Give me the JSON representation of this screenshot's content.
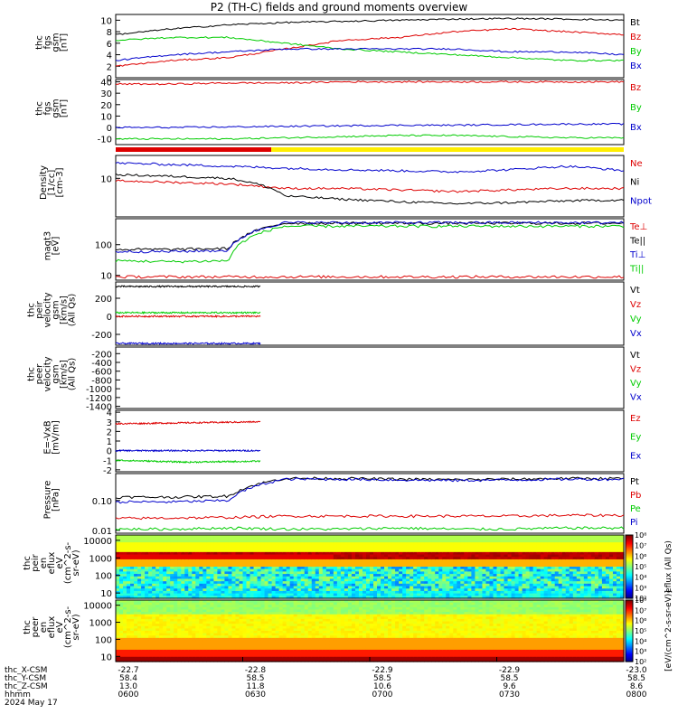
{
  "title": "P2 (TH-C) fields and ground moments overview",
  "colors": {
    "black": "#000000",
    "red": "#dd0000",
    "green": "#00cc00",
    "blue": "#0000cc",
    "yellow": "#ffee00"
  },
  "chart_data": [
    {
      "type": "line",
      "panel": "fgs_gsm_magnitude",
      "ylabel": [
        "thc",
        "fgs",
        "gsm",
        "[nT]"
      ],
      "yticks": [
        "0",
        "2",
        "4",
        "6",
        "8",
        "10"
      ],
      "ylim": [
        0,
        11
      ],
      "series": [
        {
          "name": "Bt",
          "color": "black",
          "values": [
            7.5,
            8.5,
            9.2,
            9.6,
            9.8,
            10.0,
            10.2,
            10.3,
            10.2,
            10.0
          ]
        },
        {
          "name": "Bz",
          "color": "red",
          "values": [
            2.0,
            3.0,
            3.5,
            5.0,
            6.5,
            7.0,
            8.0,
            8.5,
            8.0,
            7.5
          ]
        },
        {
          "name": "By",
          "color": "green",
          "values": [
            6.5,
            7.0,
            7.0,
            6.0,
            5.0,
            4.5,
            4.0,
            3.5,
            3.0,
            3.0
          ]
        },
        {
          "name": "Bx",
          "color": "blue",
          "values": [
            3.0,
            4.0,
            4.5,
            5.0,
            5.0,
            5.0,
            5.0,
            4.5,
            4.5,
            4.0
          ]
        }
      ]
    },
    {
      "type": "line",
      "panel": "fgs_gsm_components",
      "ylabel": [
        "thc",
        "fgs",
        "gsm",
        "[nT]"
      ],
      "yticks": [
        "-10",
        "0",
        "10",
        "20",
        "30",
        "40"
      ],
      "ylim": [
        -15,
        42
      ],
      "series": [
        {
          "name": "Bz",
          "color": "red",
          "values": [
            38,
            38,
            39,
            39,
            40,
            40,
            40,
            40,
            40,
            40
          ]
        },
        {
          "name": "By",
          "color": "green",
          "values": [
            -10,
            -10,
            -10,
            -9,
            -8,
            -7,
            -7,
            -8,
            -9,
            -9
          ]
        },
        {
          "name": "Bx",
          "color": "blue",
          "values": [
            0,
            0,
            0.5,
            1,
            1.5,
            2,
            2,
            2.5,
            3,
            3
          ]
        }
      ]
    },
    {
      "type": "line",
      "panel": "density",
      "ylabel": [
        "Density",
        "[1/cc]",
        "[cm-3]"
      ],
      "yticks": [
        "10"
      ],
      "ylim": [
        0.3,
        80
      ],
      "log": true,
      "series": [
        {
          "name": "Ne",
          "color": "red",
          "values": [
            8,
            7,
            6,
            4,
            4,
            3.5,
            3,
            3.5,
            4,
            4
          ]
        },
        {
          "name": "Ni",
          "color": "black",
          "values": [
            14,
            12,
            10,
            2,
            1.5,
            1.2,
            1,
            1.1,
            1.3,
            1.4
          ]
        },
        {
          "name": "Npot",
          "color": "blue",
          "values": [
            40,
            35,
            30,
            25,
            22,
            20,
            18,
            22,
            30,
            20
          ]
        }
      ]
    },
    {
      "type": "line",
      "panel": "temperature",
      "ylabel": [
        "magt3",
        "[eV]"
      ],
      "yticks": [
        "10",
        "100"
      ],
      "ylim": [
        7,
        700
      ],
      "log": true,
      "series": [
        {
          "name": "Te⊥",
          "color": "red",
          "values": [
            9,
            9,
            9,
            9,
            9,
            9,
            9,
            9,
            9,
            9
          ]
        },
        {
          "name": "Te||",
          "color": "black",
          "values": [
            70,
            70,
            75,
            500,
            500,
            500,
            500,
            500,
            500,
            500
          ]
        },
        {
          "name": "Ti⊥",
          "color": "blue",
          "values": [
            60,
            60,
            65,
            520,
            520,
            520,
            520,
            520,
            520,
            520
          ]
        },
        {
          "name": "Ti||",
          "color": "green",
          "values": [
            30,
            28,
            30,
            400,
            400,
            400,
            400,
            400,
            400,
            400
          ]
        }
      ]
    },
    {
      "type": "line",
      "panel": "peir_velocity",
      "ylabel": [
        "thc",
        "peir",
        "velocity",
        "gsm",
        "[km/s]",
        "(All Qs)"
      ],
      "yticks": [
        "-200",
        "0",
        "200"
      ],
      "ylim": [
        -320,
        380
      ],
      "series": [
        {
          "name": "Vt",
          "color": "black",
          "values": [
            330,
            330,
            330
          ]
        },
        {
          "name": "Vz",
          "color": "red",
          "values": [
            0,
            0,
            0
          ]
        },
        {
          "name": "Vy",
          "color": "green",
          "values": [
            40,
            40,
            40
          ]
        },
        {
          "name": "Vx",
          "color": "blue",
          "values": [
            -300,
            -300,
            -300
          ]
        }
      ]
    },
    {
      "type": "line",
      "panel": "peer_velocity",
      "ylabel": [
        "thc",
        "peer",
        "velocity",
        "gsm",
        "[km/s]",
        "(All Qs)"
      ],
      "yticks": [
        "-1400",
        "-1200",
        "-1000",
        "-800",
        "-600",
        "-400",
        "-200"
      ],
      "ylim": [
        -1450,
        -50
      ],
      "series": [
        {
          "name": "Vt",
          "color": "black",
          "values": []
        },
        {
          "name": "Vz",
          "color": "red",
          "values": []
        },
        {
          "name": "Vy",
          "color": "green",
          "values": []
        },
        {
          "name": "Vx",
          "color": "blue",
          "values": []
        }
      ]
    },
    {
      "type": "line",
      "panel": "e_field",
      "ylabel": [
        "E=-VxB",
        "[mV/m]"
      ],
      "yticks": [
        "-2",
        "-1",
        "0",
        "1",
        "2",
        "3",
        "4"
      ],
      "ylim": [
        -2.2,
        4.2
      ],
      "series": [
        {
          "name": "Ez",
          "color": "red",
          "values": [
            2.8,
            2.9,
            3.0
          ]
        },
        {
          "name": "Ey",
          "color": "green",
          "values": [
            -1.0,
            -1.2,
            -1.1
          ]
        },
        {
          "name": "Ex",
          "color": "blue",
          "values": [
            0.0,
            0.0,
            0.0
          ]
        }
      ]
    },
    {
      "type": "line",
      "panel": "pressure",
      "ylabel": [
        "Pressure",
        "[nPa]"
      ],
      "yticks": [
        "0.01",
        "0.10"
      ],
      "ylim": [
        0.008,
        0.8
      ],
      "log": true,
      "series": [
        {
          "name": "Pt",
          "color": "black",
          "values": [
            0.13,
            0.13,
            0.14,
            0.55,
            0.55,
            0.52,
            0.5,
            0.52,
            0.55,
            0.55
          ]
        },
        {
          "name": "Pb",
          "color": "red",
          "values": [
            0.025,
            0.026,
            0.027,
            0.03,
            0.03,
            0.03,
            0.03,
            0.03,
            0.032,
            0.032
          ]
        },
        {
          "name": "Pe",
          "color": "green",
          "values": [
            0.011,
            0.011,
            0.012,
            0.011,
            0.011,
            0.012,
            0.011,
            0.011,
            0.012,
            0.012
          ]
        },
        {
          "name": "Pi",
          "color": "blue",
          "values": [
            0.09,
            0.09,
            0.1,
            0.52,
            0.52,
            0.49,
            0.47,
            0.49,
            0.52,
            0.52
          ]
        }
      ]
    },
    {
      "type": "heatmap",
      "panel": "peir_en_eflux",
      "ylabel": [
        "thc",
        "peir",
        "en",
        "eflux",
        "eV",
        "(cm^2-s-",
        "sr-eV)"
      ],
      "yticks": [
        "10",
        "100",
        "1000",
        "10000"
      ],
      "ylim": [
        5,
        20000
      ],
      "log": true
    },
    {
      "type": "heatmap",
      "panel": "peer_en_eflux",
      "ylabel": [
        "thc",
        "peer",
        "en",
        "eflux",
        "eV",
        "(cm^2-s-",
        "sr-eV)"
      ],
      "yticks": [
        "10",
        "100",
        "1000",
        "10000"
      ],
      "ylim": [
        5,
        20000
      ],
      "log": true
    }
  ],
  "colorbar": {
    "label": "[eV/(cm^2-s-sr-eV)]",
    "label2": "eflux (All Qs)",
    "ticks": [
      "10²",
      "10³",
      "10⁴",
      "10⁵",
      "10⁶",
      "10⁷",
      "10⁸"
    ]
  },
  "colorbar2": {
    "ticks": [
      "10²",
      "10³",
      "10⁴",
      "10⁵",
      "10⁶",
      "10⁷",
      "10⁸"
    ]
  },
  "xaxis": {
    "rows": [
      {
        "label": "thc_X-CSM",
        "values": [
          "-22.7",
          "-22.8",
          "-22.9",
          "-22.9",
          "-23.0"
        ]
      },
      {
        "label": "thc_Y-CSM",
        "values": [
          "58.4",
          "58.5",
          "58.5",
          "58.5",
          "58.5"
        ]
      },
      {
        "label": "thc_Z-CSM",
        "values": [
          "13.0",
          "11.8",
          "10.6",
          "9.6",
          "8.6"
        ]
      },
      {
        "label": "hhmm",
        "values": [
          "0600",
          "0630",
          "0700",
          "0730",
          "0800"
        ]
      }
    ],
    "date": "2024 May 17"
  },
  "legend_layout": [
    [
      "Bt",
      "Bz",
      "By",
      "Bx"
    ],
    [
      "Bz",
      "By",
      "Bx"
    ],
    [
      "Ne",
      "Ni",
      "Npot"
    ],
    [
      "Te⊥",
      "Te||",
      "Ti⊥",
      "Ti||"
    ],
    [
      "Vt",
      "Vz",
      "Vy",
      "Vx"
    ],
    [
      "Vt",
      "Vz",
      "Vy",
      "Vx"
    ],
    [
      "Ez",
      "Ey",
      "Ex"
    ],
    [
      "Pt",
      "Pb",
      "Pe",
      "Pi"
    ]
  ]
}
